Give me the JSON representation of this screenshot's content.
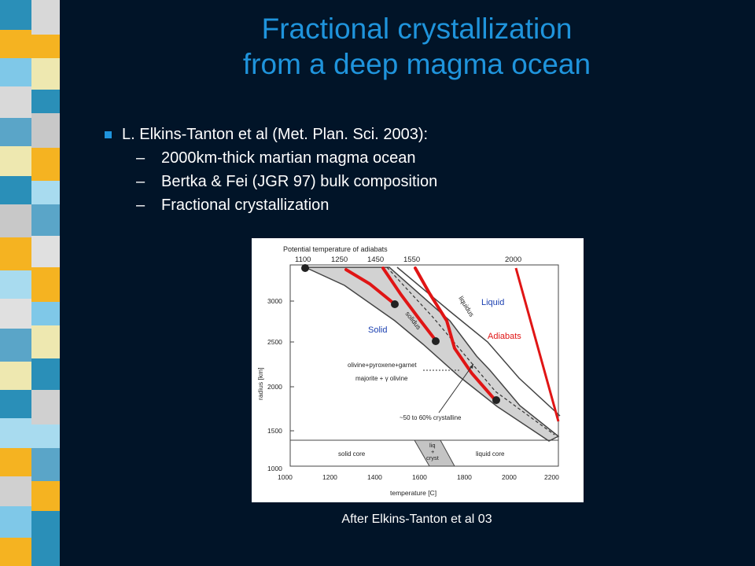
{
  "slide": {
    "title_line1": "Fractional crystallization",
    "title_line2": "from a deep magma ocean",
    "bullet": "L. Elkins-Tanton et al (Met. Plan. Sci. 2003):",
    "sub_bullets": [
      "2000km-thick martian magma ocean",
      "Bertka & Fei (JGR 97) bulk composition",
      "Fractional crystallization"
    ],
    "caption": "After Elkins-Tanton et al 03",
    "colors": {
      "background": "#011428",
      "title": "#1f94dc",
      "text": "#ffffff",
      "adiabat": "#e01515",
      "label_blue": "#1a3fb0"
    }
  },
  "figure": {
    "top_label": "Potential temperature of adiabats",
    "adiabat_ticks": [
      "1100",
      "1250",
      "1450",
      "1550",
      "2000"
    ],
    "liquidus_label": "liquidus",
    "solidus_label": "solidus",
    "liquid_label": "Liquid",
    "solid_label": "Solid",
    "adiabats_label": "Adiabats",
    "mineral_label_1": "olivine+pyroxene+garnet",
    "mineral_label_2": "majorite + γ olivine",
    "crystalline_label": "~50 to 60% crystalline",
    "solid_core_label": "solid core",
    "liq_label": "liq",
    "plus_label": "+",
    "cryst_label": "cryst",
    "liquid_core_label": "liquid core",
    "ylabel": "radius [km]",
    "xlabel": "temperature [C]",
    "y_ticks": [
      "3000",
      "2500",
      "2000",
      "1500",
      "1000"
    ],
    "x_ticks": [
      "1000",
      "1200",
      "1400",
      "1600",
      "1800",
      "2000",
      "2200"
    ]
  }
}
